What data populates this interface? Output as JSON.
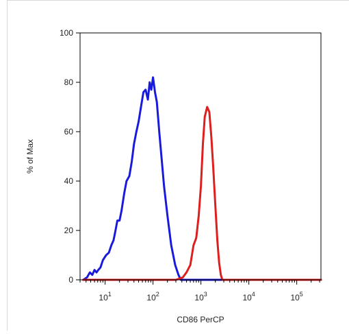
{
  "chart_data": {
    "type": "line",
    "title": "",
    "xlabel": "CD86 PerCP",
    "ylabel": "% of Max",
    "x_scale": "log",
    "xlim": [
      3,
      320000
    ],
    "ylim": [
      0,
      100
    ],
    "y_ticks": [
      {
        "value": 0,
        "label": "0"
      },
      {
        "value": 20,
        "label": "20"
      },
      {
        "value": 40,
        "label": "40"
      },
      {
        "value": 60,
        "label": "60"
      },
      {
        "value": 80,
        "label": "80"
      },
      {
        "value": 100,
        "label": "100"
      }
    ],
    "x_ticks": [
      {
        "value": 10,
        "base": "10",
        "exp": "1"
      },
      {
        "value": 100,
        "base": "10",
        "exp": "2"
      },
      {
        "value": 1000,
        "base": "10",
        "exp": "3"
      },
      {
        "value": 10000,
        "base": "10",
        "exp": "4"
      },
      {
        "value": 100000,
        "base": "10",
        "exp": "5"
      }
    ],
    "grid": false,
    "legend": "none",
    "series": [
      {
        "color": "#1a1adb",
        "x": [
          3.5,
          4.2,
          4.8,
          5.4,
          6.0,
          6.6,
          7.2,
          8.0,
          9.0,
          10.5,
          12,
          13.5,
          15,
          16.5,
          18,
          20,
          22,
          25,
          28,
          32,
          36,
          40,
          45,
          50,
          56,
          63,
          70,
          78,
          85,
          92,
          100,
          110,
          120,
          135,
          150,
          170,
          200,
          240,
          290,
          340,
          380,
          420,
          520,
          1000,
          10000,
          100000,
          320000
        ],
        "y": [
          0,
          1,
          3,
          2,
          4,
          3,
          4,
          5,
          8,
          10,
          11,
          14,
          16,
          20,
          24,
          24,
          28,
          35,
          40,
          42,
          48,
          55,
          60,
          64,
          70,
          76,
          77,
          73,
          80,
          77,
          82,
          76,
          72,
          60,
          50,
          38,
          26,
          14,
          6,
          2,
          0,
          0,
          0,
          0,
          0,
          0,
          0
        ]
      },
      {
        "color": "#dd1f1f",
        "x": [
          3.5,
          100,
          300,
          420,
          500,
          600,
          700,
          800,
          900,
          1000,
          1100,
          1200,
          1350,
          1500,
          1650,
          1800,
          2000,
          2200,
          2400,
          2600,
          2800,
          3000,
          10000,
          100000,
          320000
        ],
        "y": [
          0,
          0,
          0,
          1,
          3,
          6,
          14,
          17,
          26,
          38,
          55,
          66,
          70,
          68,
          58,
          46,
          30,
          16,
          7,
          2,
          0,
          0,
          0,
          0,
          0
        ]
      }
    ]
  }
}
